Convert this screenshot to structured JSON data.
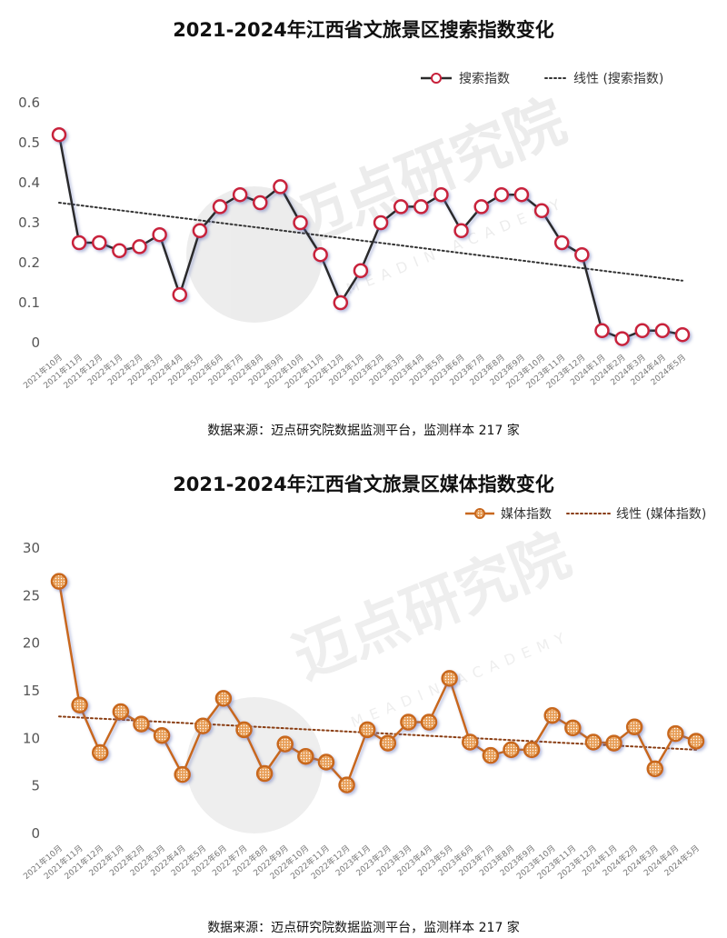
{
  "chart_data": [
    {
      "type": "line",
      "title": "2021-2024年江西省文旅景区搜索指数变化",
      "source": "数据来源：迈点研究院数据监测平台，监测样本 217 家",
      "categories": [
        "2021年10月",
        "2021年11月",
        "2021年12月",
        "2022年1月",
        "2022年2月",
        "2022年3月",
        "2022年4月",
        "2022年5月",
        "2022年6月",
        "2022年7月",
        "2022年8月",
        "2022年9月",
        "2022年10月",
        "2022年11月",
        "2022年12月",
        "2023年1月",
        "2023年2月",
        "2023年3月",
        "2023年4月",
        "2023年5月",
        "2023年6月",
        "2023年7月",
        "2023年8月",
        "2023年9月",
        "2023年10月",
        "2023年11月",
        "2023年12月",
        "2024年1月",
        "2024年2月",
        "2024年3月",
        "2024年4月",
        "2024年5月"
      ],
      "series": [
        {
          "name": "搜索指数",
          "values": [
            0.52,
            0.25,
            0.25,
            0.23,
            0.24,
            0.27,
            0.12,
            0.28,
            0.34,
            0.37,
            0.35,
            0.39,
            0.3,
            0.22,
            0.1,
            0.18,
            0.3,
            0.34,
            0.34,
            0.37,
            0.28,
            0.34,
            0.37,
            0.37,
            0.33,
            0.25,
            0.22,
            0.03,
            0.01,
            0.03,
            0.03,
            0.02
          ]
        }
      ],
      "trendline": {
        "name": "线性 (搜索指数)",
        "start": 0.35,
        "end": 0.155
      },
      "ylim": [
        0,
        0.6
      ],
      "yticks": [
        "0",
        "0.1",
        "0.2",
        "0.3",
        "0.4",
        "0.5",
        "0.6"
      ],
      "legend": "top-right",
      "grid": false,
      "colors": {
        "line": "#2b2b2b",
        "marker_stroke": "#c8203a",
        "marker_fill": "#ffffff",
        "trend": "#333333"
      }
    },
    {
      "type": "line",
      "title": "2021-2024年江西省文旅景区媒体指数变化",
      "source": "数据来源：迈点研究院数据监测平台，监测样本 217 家",
      "categories": [
        "2021年10月",
        "2021年11月",
        "2021年12月",
        "2022年1月",
        "2022年2月",
        "2022年3月",
        "2022年4月",
        "2022年5月",
        "2022年6月",
        "2022年7月",
        "2022年8月",
        "2022年9月",
        "2022年10月",
        "2022年11月",
        "2022年12月",
        "2023年1月",
        "2023年2月",
        "2023年3月",
        "2023年4月",
        "2023年5月",
        "2023年6月",
        "2023年7月",
        "2023年8月",
        "2023年9月",
        "2023年10月",
        "2023年11月",
        "2023年12月",
        "2024年1月",
        "2024年2月",
        "2024年3月",
        "2024年4月",
        "2024年5月"
      ],
      "series": [
        {
          "name": "媒体指数",
          "values": [
            26.5,
            13.5,
            8.5,
            12.8,
            11.5,
            10.3,
            6.2,
            11.3,
            14.2,
            10.9,
            6.3,
            9.4,
            8.1,
            7.5,
            5.1,
            10.9,
            9.5,
            11.7,
            11.7,
            16.3,
            9.6,
            8.2,
            8.8,
            8.8,
            12.4,
            11.1,
            9.6,
            9.5,
            11.2,
            6.8,
            10.5,
            9.7
          ]
        }
      ],
      "trendline": {
        "name": "线性 (媒体指数)",
        "start": 12.3,
        "end": 8.8
      },
      "ylim": [
        0,
        30
      ],
      "yticks": [
        "0",
        "5",
        "10",
        "15",
        "20",
        "25",
        "30"
      ],
      "legend": "top-right",
      "grid": false,
      "colors": {
        "line": "#c8681e",
        "marker_stroke": "#c8681e",
        "marker_fill": "#e8a05a",
        "trend": "#8a3d12"
      }
    }
  ],
  "watermark": {
    "text": "迈点研究院",
    "subtext": "MEADIN ACADEMY"
  }
}
